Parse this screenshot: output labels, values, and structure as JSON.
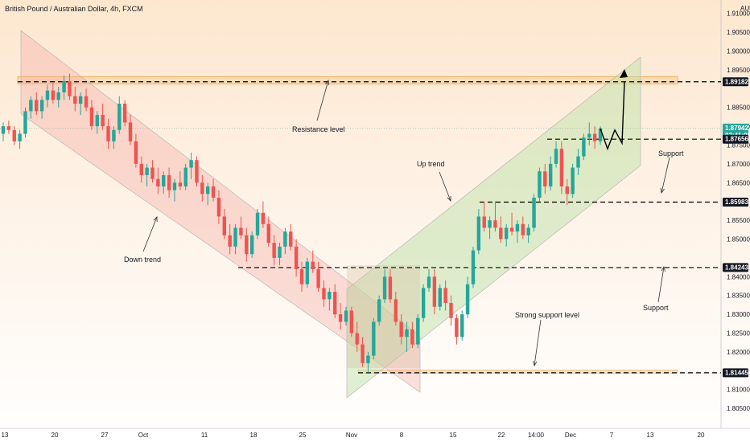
{
  "header": {
    "title": "British Pound / Australian Dollar, 4h, FXCM"
  },
  "colors": {
    "up": "#26a69a",
    "down": "#ef5350",
    "resistance_band": "#f5c78a",
    "down_channel": "#f4a6a0",
    "up_channel": "#b9dfa3",
    "zone": "#d8bfa0"
  },
  "chart_data": {
    "type": "candlestick",
    "title": "British Pound / Australian Dollar, 4h, FXCM",
    "currency": "AUD",
    "ylim": [
      1.8,
      1.91
    ],
    "y_ticks": [
      "1.91000",
      "1.90500",
      "1.90000",
      "1.89500",
      "1.88500",
      "1.88000",
      "1.87500",
      "1.87000",
      "1.86500",
      "1.85500",
      "1.85000",
      "1.84000",
      "1.83500",
      "1.83000",
      "1.82500",
      "1.82000",
      "1.81000",
      "1.80500"
    ],
    "x_ticks": [
      "13",
      "20",
      "27",
      "Oct",
      "11",
      "18",
      "25",
      "Nov",
      "8",
      "15",
      "22",
      "14:00",
      "Dec",
      "7",
      "13",
      "20"
    ],
    "price_tags": [
      {
        "label": "1.89182",
        "value": 1.89182,
        "style": "dark"
      },
      {
        "label": "1.87942",
        "sublabel": "02:41:08",
        "value": 1.87942,
        "style": "green"
      },
      {
        "label": "1.87656",
        "value": 1.87656,
        "style": "dark"
      },
      {
        "label": "1.85983",
        "value": 1.85983,
        "style": "dark"
      },
      {
        "label": "1.84243",
        "value": 1.84243,
        "style": "dark"
      },
      {
        "label": "1.81445",
        "value": 1.81445,
        "style": "dark"
      }
    ],
    "levels": [
      1.89182,
      1.87656,
      1.85983,
      1.84243,
      1.81445
    ],
    "annotations": [
      "Resistance level",
      "Up trend",
      "Down trend",
      "Support",
      "Support",
      "Strong support level"
    ],
    "candles": [
      [
        1.878,
        1.881,
        1.876,
        1.88
      ],
      [
        1.88,
        1.8815,
        1.878,
        1.879
      ],
      [
        1.879,
        1.88,
        1.875,
        1.876
      ],
      [
        1.876,
        1.879,
        1.874,
        1.878
      ],
      [
        1.878,
        1.885,
        1.877,
        1.884
      ],
      [
        1.884,
        1.888,
        1.882,
        1.887
      ],
      [
        1.887,
        1.889,
        1.883,
        1.884
      ],
      [
        1.884,
        1.888,
        1.882,
        1.887
      ],
      [
        1.887,
        1.891,
        1.885,
        1.8895
      ],
      [
        1.8895,
        1.8915,
        1.886,
        1.887
      ],
      [
        1.887,
        1.8905,
        1.885,
        1.889
      ],
      [
        1.889,
        1.8935,
        1.887,
        1.892
      ],
      [
        1.892,
        1.894,
        1.887,
        1.888
      ],
      [
        1.888,
        1.8905,
        1.884,
        1.886
      ],
      [
        1.886,
        1.889,
        1.883,
        1.888
      ],
      [
        1.888,
        1.89,
        1.884,
        1.885
      ],
      [
        1.885,
        1.887,
        1.879,
        1.88
      ],
      [
        1.88,
        1.884,
        1.878,
        1.883
      ],
      [
        1.883,
        1.886,
        1.879,
        1.88
      ],
      [
        1.88,
        1.882,
        1.874,
        1.876
      ],
      [
        1.876,
        1.88,
        1.874,
        1.879
      ],
      [
        1.879,
        1.888,
        1.878,
        1.886
      ],
      [
        1.886,
        1.887,
        1.88,
        1.881
      ],
      [
        1.881,
        1.883,
        1.875,
        1.876
      ],
      [
        1.876,
        1.878,
        1.869,
        1.87
      ],
      [
        1.87,
        1.872,
        1.865,
        1.867
      ],
      [
        1.867,
        1.87,
        1.864,
        1.869
      ],
      [
        1.869,
        1.871,
        1.865,
        1.866
      ],
      [
        1.866,
        1.869,
        1.862,
        1.864
      ],
      [
        1.864,
        1.868,
        1.862,
        1.867
      ],
      [
        1.867,
        1.869,
        1.861,
        1.863
      ],
      [
        1.863,
        1.866,
        1.86,
        1.865
      ],
      [
        1.865,
        1.868,
        1.863,
        1.864
      ],
      [
        1.864,
        1.87,
        1.863,
        1.869
      ],
      [
        1.869,
        1.873,
        1.866,
        1.871
      ],
      [
        1.871,
        1.872,
        1.864,
        1.865
      ],
      [
        1.865,
        1.867,
        1.86,
        1.862
      ],
      [
        1.862,
        1.865,
        1.859,
        1.864
      ],
      [
        1.864,
        1.866,
        1.86,
        1.861
      ],
      [
        1.861,
        1.863,
        1.854,
        1.856
      ],
      [
        1.856,
        1.858,
        1.85,
        1.851
      ],
      [
        1.851,
        1.854,
        1.846,
        1.848
      ],
      [
        1.848,
        1.854,
        1.846,
        1.853
      ],
      [
        1.853,
        1.856,
        1.85,
        1.851
      ],
      [
        1.851,
        1.853,
        1.844,
        1.846
      ],
      [
        1.846,
        1.852,
        1.845,
        1.851
      ],
      [
        1.851,
        1.858,
        1.85,
        1.857
      ],
      [
        1.857,
        1.86,
        1.853,
        1.854
      ],
      [
        1.854,
        1.856,
        1.848,
        1.849
      ],
      [
        1.849,
        1.851,
        1.843,
        1.845
      ],
      [
        1.845,
        1.849,
        1.843,
        1.848
      ],
      [
        1.848,
        1.853,
        1.846,
        1.852
      ],
      [
        1.852,
        1.854,
        1.847,
        1.848
      ],
      [
        1.848,
        1.85,
        1.84,
        1.842
      ],
      [
        1.842,
        1.844,
        1.836,
        1.838
      ],
      [
        1.838,
        1.845,
        1.837,
        1.844
      ],
      [
        1.844,
        1.847,
        1.841,
        1.842
      ],
      [
        1.842,
        1.844,
        1.836,
        1.837
      ],
      [
        1.837,
        1.839,
        1.832,
        1.834
      ],
      [
        1.834,
        1.837,
        1.831,
        1.836
      ],
      [
        1.836,
        1.838,
        1.829,
        1.83
      ],
      [
        1.83,
        1.833,
        1.826,
        1.828
      ],
      [
        1.828,
        1.832,
        1.827,
        1.831
      ],
      [
        1.831,
        1.832,
        1.824,
        1.825
      ],
      [
        1.825,
        1.828,
        1.82,
        1.822
      ],
      [
        1.822,
        1.824,
        1.816,
        1.817
      ],
      [
        1.817,
        1.82,
        1.8145,
        1.819
      ],
      [
        1.819,
        1.829,
        1.818,
        1.828
      ],
      [
        1.828,
        1.835,
        1.827,
        1.834
      ],
      [
        1.834,
        1.842,
        1.833,
        1.84
      ],
      [
        1.84,
        1.842,
        1.833,
        1.834
      ],
      [
        1.834,
        1.836,
        1.827,
        1.828
      ],
      [
        1.828,
        1.83,
        1.822,
        1.824
      ],
      [
        1.824,
        1.828,
        1.82,
        1.826
      ],
      [
        1.826,
        1.828,
        1.821,
        1.822
      ],
      [
        1.822,
        1.83,
        1.821,
        1.829
      ],
      [
        1.829,
        1.838,
        1.828,
        1.837
      ],
      [
        1.837,
        1.842,
        1.836,
        1.84
      ],
      [
        1.84,
        1.842,
        1.83,
        1.832
      ],
      [
        1.832,
        1.838,
        1.831,
        1.837
      ],
      [
        1.837,
        1.839,
        1.831,
        1.833
      ],
      [
        1.833,
        1.835,
        1.827,
        1.829
      ],
      [
        1.829,
        1.83,
        1.822,
        1.824
      ],
      [
        1.824,
        1.831,
        1.823,
        1.83
      ],
      [
        1.83,
        1.84,
        1.829,
        1.838
      ],
      [
        1.838,
        1.848,
        1.837,
        1.847
      ],
      [
        1.847,
        1.858,
        1.846,
        1.856
      ],
      [
        1.856,
        1.86,
        1.852,
        1.853
      ],
      [
        1.853,
        1.856,
        1.85,
        1.855
      ],
      [
        1.855,
        1.86,
        1.852,
        1.853
      ],
      [
        1.853,
        1.856,
        1.849,
        1.85
      ],
      [
        1.85,
        1.854,
        1.848,
        1.853
      ],
      [
        1.853,
        1.857,
        1.851,
        1.852
      ],
      [
        1.852,
        1.855,
        1.849,
        1.854
      ],
      [
        1.854,
        1.856,
        1.85,
        1.851
      ],
      [
        1.851,
        1.854,
        1.849,
        1.853
      ],
      [
        1.853,
        1.862,
        1.852,
        1.861
      ],
      [
        1.861,
        1.869,
        1.86,
        1.868
      ],
      [
        1.868,
        1.87,
        1.862,
        1.864
      ],
      [
        1.864,
        1.872,
        1.863,
        1.87
      ],
      [
        1.87,
        1.876,
        1.869,
        1.874
      ],
      [
        1.874,
        1.876,
        1.862,
        1.864
      ],
      [
        1.864,
        1.866,
        1.859,
        1.862
      ],
      [
        1.862,
        1.87,
        1.861,
        1.869
      ],
      [
        1.869,
        1.874,
        1.867,
        1.872
      ],
      [
        1.872,
        1.878,
        1.871,
        1.877
      ],
      [
        1.877,
        1.881,
        1.875,
        1.878
      ],
      [
        1.878,
        1.88,
        1.874,
        1.876
      ],
      [
        1.876,
        1.88,
        1.875,
        1.8794
      ]
    ],
    "projection": [
      [
        1.8794,
        0
      ],
      [
        1.874,
        1
      ],
      [
        1.879,
        2
      ],
      [
        1.8755,
        3
      ],
      [
        1.8918,
        4
      ]
    ]
  }
}
